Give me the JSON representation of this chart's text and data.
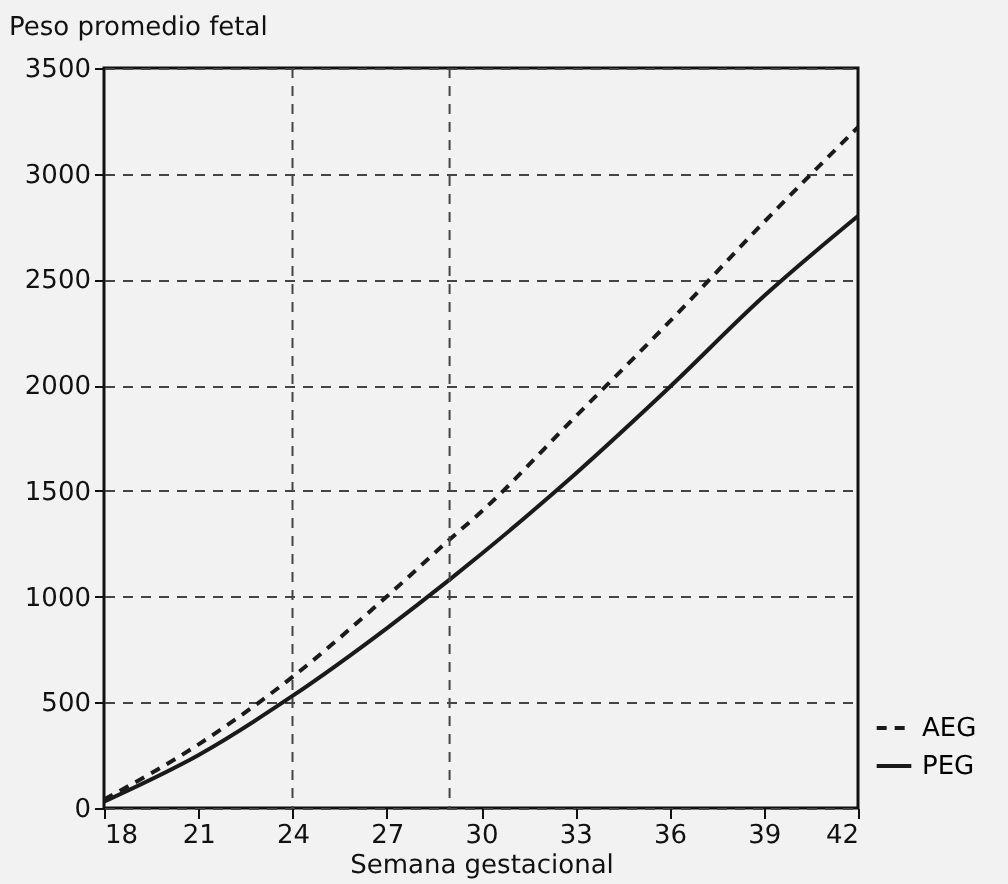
{
  "chart_data": {
    "type": "line",
    "xlabel": "Semana gestacional",
    "ylabel": "Peso promedio fetal",
    "x": [
      18,
      21,
      24,
      27,
      29,
      30,
      33,
      36,
      39,
      42
    ],
    "series": [
      {
        "name": "AEG",
        "color": "#1a1a1a",
        "line_style": "dashed",
        "values": [
          40,
          300,
          620,
          1000,
          1270,
          1400,
          1850,
          2300,
          2770,
          3220
        ]
      },
      {
        "name": "PEG",
        "color": "#1a1a1a",
        "line_style": "solid",
        "values": [
          30,
          250,
          530,
          850,
          1080,
          1200,
          1580,
          1990,
          2420,
          2800
        ]
      }
    ],
    "xlim": [
      18,
      42
    ],
    "xticks": [
      18,
      21,
      24,
      27,
      30,
      33,
      36,
      39,
      42
    ],
    "ylim": [
      0,
      3500
    ],
    "yticks": [
      0,
      500,
      1000,
      1500,
      2000,
      2500,
      3000,
      3500
    ],
    "grid": "y",
    "legend": "bottom right",
    "marker": "none",
    "ref_lines": [
      {
        "axis": "x",
        "value": 24,
        "line_style": "dashed"
      },
      {
        "axis": "x",
        "value": 29,
        "line_style": "dashed"
      }
    ]
  }
}
